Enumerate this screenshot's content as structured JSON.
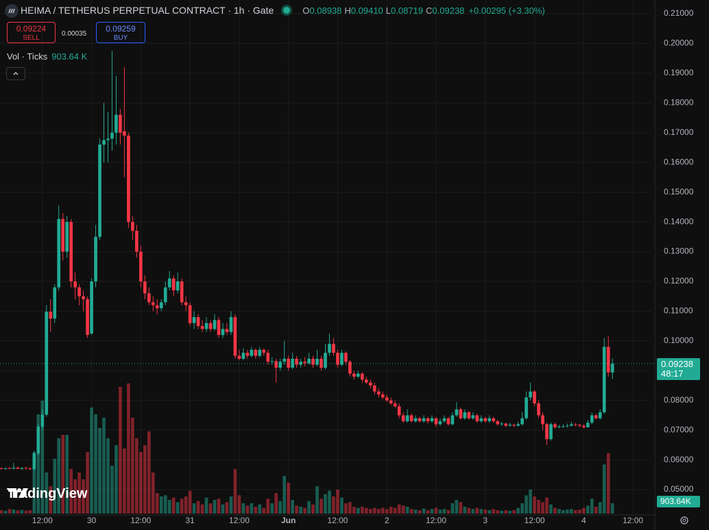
{
  "chart_data": {
    "type": "candlestick",
    "title": "HEIMA / TETHERUS PERPETUAL CONTRACT · 1h · Gate",
    "ohlc_legend": [
      {
        "label": "O",
        "value": "0.08938"
      },
      {
        "label": "H",
        "value": "0.09410"
      },
      {
        "label": "L",
        "value": "0.08719"
      },
      {
        "label": "C",
        "value": "0.09238"
      }
    ],
    "change": "+0.00295 (+3.30%)",
    "sell": {
      "price": "0.09224",
      "label": "SELL"
    },
    "spread": "0.00035",
    "buy": {
      "price": "0.09259",
      "label": "BUY"
    },
    "volume_title": "Vol · Ticks",
    "volume_label": "903.64 K",
    "volume_tag": "903.64K",
    "countdown": "48:17",
    "watermark": "TradingView",
    "up_color": "#22ab94",
    "down_color": "#f23645",
    "grid": true,
    "candles": [
      [
        0.0572,
        0.0575,
        0.0568,
        0.057
      ],
      [
        0.057,
        0.0574,
        0.0567,
        0.0572
      ],
      [
        0.0572,
        0.0576,
        0.0569,
        0.0571
      ],
      [
        0.0571,
        0.059,
        0.0568,
        0.0574
      ],
      [
        0.0574,
        0.0578,
        0.0569,
        0.057
      ],
      [
        0.057,
        0.0575,
        0.0566,
        0.0573
      ],
      [
        0.0573,
        0.0577,
        0.0568,
        0.0571
      ],
      [
        0.0571,
        0.0575,
        0.0566,
        0.0569
      ],
      [
        0.0569,
        0.063,
        0.0565,
        0.0622
      ],
      [
        0.0622,
        0.072,
        0.0615,
        0.0712
      ],
      [
        0.0712,
        0.077,
        0.07,
        0.0752
      ],
      [
        0.0752,
        0.112,
        0.0745,
        0.1098
      ],
      [
        0.1098,
        0.114,
        0.103,
        0.1075
      ],
      [
        0.1075,
        0.119,
        0.106,
        0.118
      ],
      [
        0.118,
        0.1455,
        0.117,
        0.141
      ],
      [
        0.141,
        0.143,
        0.127,
        0.13
      ],
      [
        0.13,
        0.142,
        0.128,
        0.14
      ],
      [
        0.14,
        0.141,
        0.118,
        0.12
      ],
      [
        0.12,
        0.123,
        0.114,
        0.118
      ],
      [
        0.118,
        0.119,
        0.112,
        0.115
      ],
      [
        0.115,
        0.117,
        0.11,
        0.114
      ],
      [
        0.114,
        0.115,
        0.101,
        0.102
      ],
      [
        0.1025,
        0.121,
        0.102,
        0.12
      ],
      [
        0.12,
        0.139,
        0.118,
        0.135
      ],
      [
        0.135,
        0.168,
        0.134,
        0.166
      ],
      [
        0.166,
        0.18,
        0.16,
        0.1675
      ],
      [
        0.1675,
        0.177,
        0.16,
        0.168
      ],
      [
        0.168,
        0.1975,
        0.164,
        0.17
      ],
      [
        0.17,
        0.189,
        0.166,
        0.176
      ],
      [
        0.176,
        0.178,
        0.166,
        0.17
      ],
      [
        0.1705,
        0.192,
        0.155,
        0.169
      ],
      [
        0.169,
        0.17,
        0.138,
        0.14
      ],
      [
        0.14,
        0.142,
        0.134,
        0.137
      ],
      [
        0.137,
        0.139,
        0.128,
        0.13
      ],
      [
        0.13,
        0.132,
        0.118,
        0.12
      ],
      [
        0.12,
        0.122,
        0.114,
        0.116
      ],
      [
        0.116,
        0.118,
        0.112,
        0.113
      ],
      [
        0.113,
        0.115,
        0.11,
        0.112
      ],
      [
        0.112,
        0.114,
        0.109,
        0.111
      ],
      [
        0.111,
        0.114,
        0.11,
        0.113
      ],
      [
        0.113,
        0.12,
        0.112,
        0.118
      ],
      [
        0.118,
        0.1235,
        0.117,
        0.121
      ],
      [
        0.121,
        0.122,
        0.115,
        0.117
      ],
      [
        0.117,
        0.123,
        0.116,
        0.12
      ],
      [
        0.12,
        0.121,
        0.112,
        0.113
      ],
      [
        0.113,
        0.115,
        0.11,
        0.112
      ],
      [
        0.112,
        0.113,
        0.105,
        0.106
      ],
      [
        0.106,
        0.11,
        0.104,
        0.108
      ],
      [
        0.108,
        0.109,
        0.104,
        0.105
      ],
      [
        0.105,
        0.107,
        0.103,
        0.104
      ],
      [
        0.104,
        0.108,
        0.103,
        0.106
      ],
      [
        0.106,
        0.107,
        0.103,
        0.104
      ],
      [
        0.104,
        0.109,
        0.1035,
        0.107
      ],
      [
        0.107,
        0.108,
        0.101,
        0.102
      ],
      [
        0.102,
        0.106,
        0.101,
        0.104
      ],
      [
        0.104,
        0.106,
        0.102,
        0.103
      ],
      [
        0.103,
        0.11,
        0.102,
        0.108
      ],
      [
        0.108,
        0.109,
        0.094,
        0.095
      ],
      [
        0.095,
        0.097,
        0.0935,
        0.094
      ],
      [
        0.094,
        0.0975,
        0.0935,
        0.096
      ],
      [
        0.096,
        0.097,
        0.094,
        0.095
      ],
      [
        0.095,
        0.098,
        0.0945,
        0.097
      ],
      [
        0.097,
        0.0975,
        0.094,
        0.095
      ],
      [
        0.095,
        0.098,
        0.0945,
        0.097
      ],
      [
        0.097,
        0.0975,
        0.095,
        0.096
      ],
      [
        0.096,
        0.097,
        0.092,
        0.093
      ],
      [
        0.093,
        0.0945,
        0.092,
        0.0932
      ],
      [
        0.0932,
        0.094,
        0.086,
        0.091
      ],
      [
        0.091,
        0.094,
        0.09,
        0.093
      ],
      [
        0.093,
        0.1,
        0.092,
        0.094
      ],
      [
        0.094,
        0.095,
        0.09,
        0.091
      ],
      [
        0.091,
        0.096,
        0.0905,
        0.094
      ],
      [
        0.094,
        0.095,
        0.091,
        0.092
      ],
      [
        0.092,
        0.094,
        0.091,
        0.093
      ],
      [
        0.093,
        0.0945,
        0.0915,
        0.0925
      ],
      [
        0.0925,
        0.096,
        0.092,
        0.094
      ],
      [
        0.094,
        0.095,
        0.091,
        0.092
      ],
      [
        0.092,
        0.097,
        0.0915,
        0.094
      ],
      [
        0.094,
        0.095,
        0.09,
        0.091
      ],
      [
        0.091,
        0.099,
        0.0905,
        0.096
      ],
      [
        0.096,
        0.1025,
        0.095,
        0.099
      ],
      [
        0.099,
        0.101,
        0.095,
        0.096
      ],
      [
        0.096,
        0.097,
        0.091,
        0.092
      ],
      [
        0.092,
        0.097,
        0.0915,
        0.096
      ],
      [
        0.096,
        0.0965,
        0.092,
        0.093
      ],
      [
        0.093,
        0.0935,
        0.088,
        0.089
      ],
      [
        0.089,
        0.09,
        0.087,
        0.088
      ],
      [
        0.088,
        0.09,
        0.0875,
        0.089
      ],
      [
        0.089,
        0.0895,
        0.086,
        0.087
      ],
      [
        0.087,
        0.088,
        0.0855,
        0.086
      ],
      [
        0.086,
        0.087,
        0.084,
        0.085
      ],
      [
        0.085,
        0.086,
        0.082,
        0.083
      ],
      [
        0.083,
        0.084,
        0.081,
        0.082
      ],
      [
        0.082,
        0.083,
        0.0805,
        0.081
      ],
      [
        0.081,
        0.082,
        0.0795,
        0.08
      ],
      [
        0.08,
        0.081,
        0.0785,
        0.079
      ],
      [
        0.079,
        0.08,
        0.0775,
        0.078
      ],
      [
        0.078,
        0.079,
        0.074,
        0.075
      ],
      [
        0.075,
        0.076,
        0.0725,
        0.073
      ],
      [
        0.073,
        0.077,
        0.0725,
        0.075
      ],
      [
        0.075,
        0.0755,
        0.0725,
        0.073
      ],
      [
        0.073,
        0.075,
        0.0725,
        0.074
      ],
      [
        0.074,
        0.0745,
        0.0725,
        0.073
      ],
      [
        0.073,
        0.075,
        0.0725,
        0.074
      ],
      [
        0.074,
        0.0745,
        0.0722,
        0.073
      ],
      [
        0.073,
        0.075,
        0.0725,
        0.074
      ],
      [
        0.074,
        0.0745,
        0.071,
        0.072
      ],
      [
        0.072,
        0.074,
        0.0715,
        0.073
      ],
      [
        0.073,
        0.075,
        0.0725,
        0.074
      ],
      [
        0.074,
        0.0745,
        0.0715,
        0.072
      ],
      [
        0.072,
        0.076,
        0.0715,
        0.075
      ],
      [
        0.075,
        0.0795,
        0.0745,
        0.077
      ],
      [
        0.077,
        0.0775,
        0.0735,
        0.074
      ],
      [
        0.074,
        0.077,
        0.0735,
        0.076
      ],
      [
        0.076,
        0.0765,
        0.0735,
        0.074
      ],
      [
        0.074,
        0.076,
        0.0735,
        0.075
      ],
      [
        0.075,
        0.0755,
        0.0725,
        0.073
      ],
      [
        0.073,
        0.075,
        0.0725,
        0.074
      ],
      [
        0.074,
        0.0745,
        0.0725,
        0.073
      ],
      [
        0.073,
        0.075,
        0.0725,
        0.074
      ],
      [
        0.074,
        0.0745,
        0.0725,
        0.073
      ],
      [
        0.073,
        0.0735,
        0.0715,
        0.072
      ],
      [
        0.072,
        0.0728,
        0.0714,
        0.0722
      ],
      [
        0.0722,
        0.0725,
        0.071,
        0.0715
      ],
      [
        0.0715,
        0.0725,
        0.0712,
        0.0718
      ],
      [
        0.0718,
        0.0722,
        0.071,
        0.0715
      ],
      [
        0.0715,
        0.0728,
        0.0712,
        0.072
      ],
      [
        0.072,
        0.076,
        0.0715,
        0.074
      ],
      [
        0.074,
        0.083,
        0.0735,
        0.081
      ],
      [
        0.081,
        0.086,
        0.08,
        0.083
      ],
      [
        0.083,
        0.0835,
        0.078,
        0.079
      ],
      [
        0.079,
        0.08,
        0.074,
        0.075
      ],
      [
        0.075,
        0.076,
        0.07,
        0.072
      ],
      [
        0.072,
        0.0725,
        0.065,
        0.067
      ],
      [
        0.067,
        0.0725,
        0.0665,
        0.072
      ],
      [
        0.072,
        0.0725,
        0.0705,
        0.071
      ],
      [
        0.071,
        0.0718,
        0.0706,
        0.0712
      ],
      [
        0.0712,
        0.072,
        0.0708,
        0.0713
      ],
      [
        0.0713,
        0.0722,
        0.0709,
        0.0715
      ],
      [
        0.0715,
        0.0728,
        0.0712,
        0.072
      ],
      [
        0.072,
        0.0724,
        0.0712,
        0.0718
      ],
      [
        0.0718,
        0.0722,
        0.071,
        0.0715
      ],
      [
        0.0715,
        0.072,
        0.0705,
        0.071
      ],
      [
        0.071,
        0.0735,
        0.0708,
        0.0725
      ],
      [
        0.0725,
        0.076,
        0.072,
        0.075
      ],
      [
        0.075,
        0.0755,
        0.0735,
        0.074
      ],
      [
        0.074,
        0.077,
        0.0735,
        0.076
      ],
      [
        0.076,
        0.101,
        0.0755,
        0.098
      ],
      [
        0.098,
        0.1015,
        0.088,
        0.0894
      ],
      [
        0.08938,
        0.0941,
        0.08719,
        0.09238
      ]
    ],
    "volume": [
      300000,
      250000,
      400000,
      350000,
      280000,
      320000,
      260000,
      300000,
      5400000,
      8700000,
      9900000,
      3600000,
      2400000,
      4800000,
      6600000,
      6900000,
      6900000,
      3900000,
      3000000,
      3600000,
      3000000,
      5400000,
      9300000,
      8700000,
      7500000,
      8400000,
      6600000,
      4200000,
      6000000,
      11100000,
      5700000,
      11400000,
      8400000,
      6600000,
      5400000,
      6000000,
      7200000,
      3600000,
      1800000,
      1500000,
      1600000,
      1200000,
      1400000,
      1000000,
      1300000,
      1500000,
      2000000,
      900000,
      1100000,
      800000,
      1400000,
      900000,
      1200000,
      1300000,
      800000,
      1000000,
      1500000,
      3900000,
      1600000,
      900000,
      700000,
      900000,
      600000,
      800000,
      500000,
      1300000,
      900000,
      1800000,
      1100000,
      3300000,
      2700000,
      1200000,
      700000,
      600000,
      500000,
      1100000,
      800000,
      2400000,
      1300000,
      1700000,
      2000000,
      1500000,
      2100000,
      1400000,
      900000,
      1000000,
      600000,
      500000,
      600000,
      500000,
      400000,
      500000,
      400000,
      500000,
      400000,
      600000,
      500000,
      800000,
      700000,
      600000,
      400000,
      350000,
      300000,
      450000,
      300000,
      400000,
      500000,
      350000,
      400000,
      300000,
      900000,
      1200000,
      1000000,
      600000,
      500000,
      400000,
      500000,
      400000,
      350000,
      300000,
      400000,
      300000,
      250000,
      300000,
      250000,
      300000,
      500000,
      900000,
      1600000,
      2100000,
      1500000,
      1200000,
      1000000,
      1400000,
      800000,
      500000,
      400000,
      300000,
      350000,
      400000,
      300000,
      350000,
      500000,
      700000,
      1300000,
      600000,
      1000000,
      4300000,
      5300000,
      903640
    ],
    "xlim": [
      -0.33,
      158.5
    ],
    "xticks": [
      {
        "value": 10,
        "label": "12:00"
      },
      {
        "value": 22,
        "label": "30"
      },
      {
        "value": 34,
        "label": "12:00"
      },
      {
        "value": 46,
        "label": "31"
      },
      {
        "value": 58,
        "label": "12:00"
      },
      {
        "value": 70,
        "label": "Jun"
      },
      {
        "value": 82,
        "label": "12:00"
      },
      {
        "value": 94,
        "label": "2"
      },
      {
        "value": 106,
        "label": "12:00"
      },
      {
        "value": 118,
        "label": "3"
      },
      {
        "value": 130,
        "label": "12:00"
      },
      {
        "value": 142,
        "label": "4"
      },
      {
        "value": 154,
        "label": "12:00"
      }
    ],
    "ylim": [
      0.0415,
      0.2146
    ],
    "yticks": [
      {
        "value": 0.05,
        "label": "0.05000"
      },
      {
        "value": 0.06,
        "label": "0.06000"
      },
      {
        "value": 0.07,
        "label": "0.07000"
      },
      {
        "value": 0.08,
        "label": "0.08000"
      },
      {
        "value": 0.09,
        "label": "0.09000"
      },
      {
        "value": 0.1,
        "label": "0.10000"
      },
      {
        "value": 0.11,
        "label": "0.11000"
      },
      {
        "value": 0.12,
        "label": "0.12000"
      },
      {
        "value": 0.13,
        "label": "0.13000"
      },
      {
        "value": 0.14,
        "label": "0.14000"
      },
      {
        "value": 0.15,
        "label": "0.15000"
      },
      {
        "value": 0.16,
        "label": "0.16000"
      },
      {
        "value": 0.17,
        "label": "0.17000"
      },
      {
        "value": 0.18,
        "label": "0.18000"
      },
      {
        "value": 0.19,
        "label": "0.19000"
      },
      {
        "value": 0.2,
        "label": "0.20000"
      },
      {
        "value": 0.21,
        "label": "0.21000"
      }
    ]
  }
}
